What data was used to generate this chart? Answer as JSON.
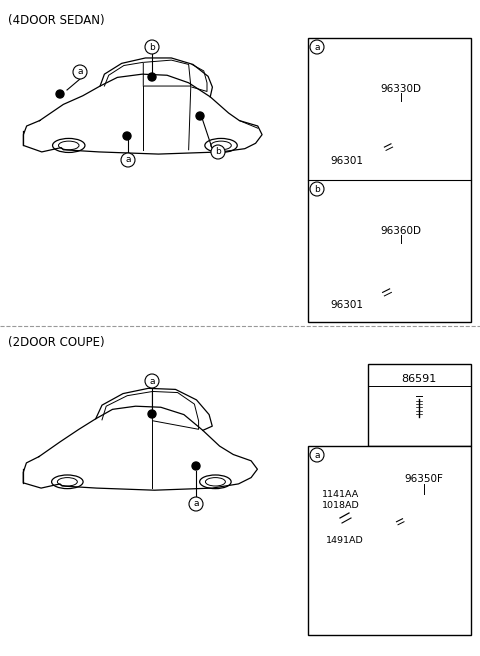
{
  "title_top": "(4DOOR SEDAN)",
  "title_bottom": "(2DOOR COUPE)",
  "bg_color": "#ffffff",
  "line_color": "#000000",
  "divider_color": "#aaaaaa",
  "section1": {
    "part1_number": "96330D",
    "part1_connector": "96301",
    "part2_number": "96360D",
    "part2_connector": "96301"
  },
  "section2": {
    "box_label_screw": "86591",
    "part_number": "96350F",
    "part_connector1": "1141AA",
    "part_connector2": "1018AD",
    "part_connector3": "1491AD"
  }
}
